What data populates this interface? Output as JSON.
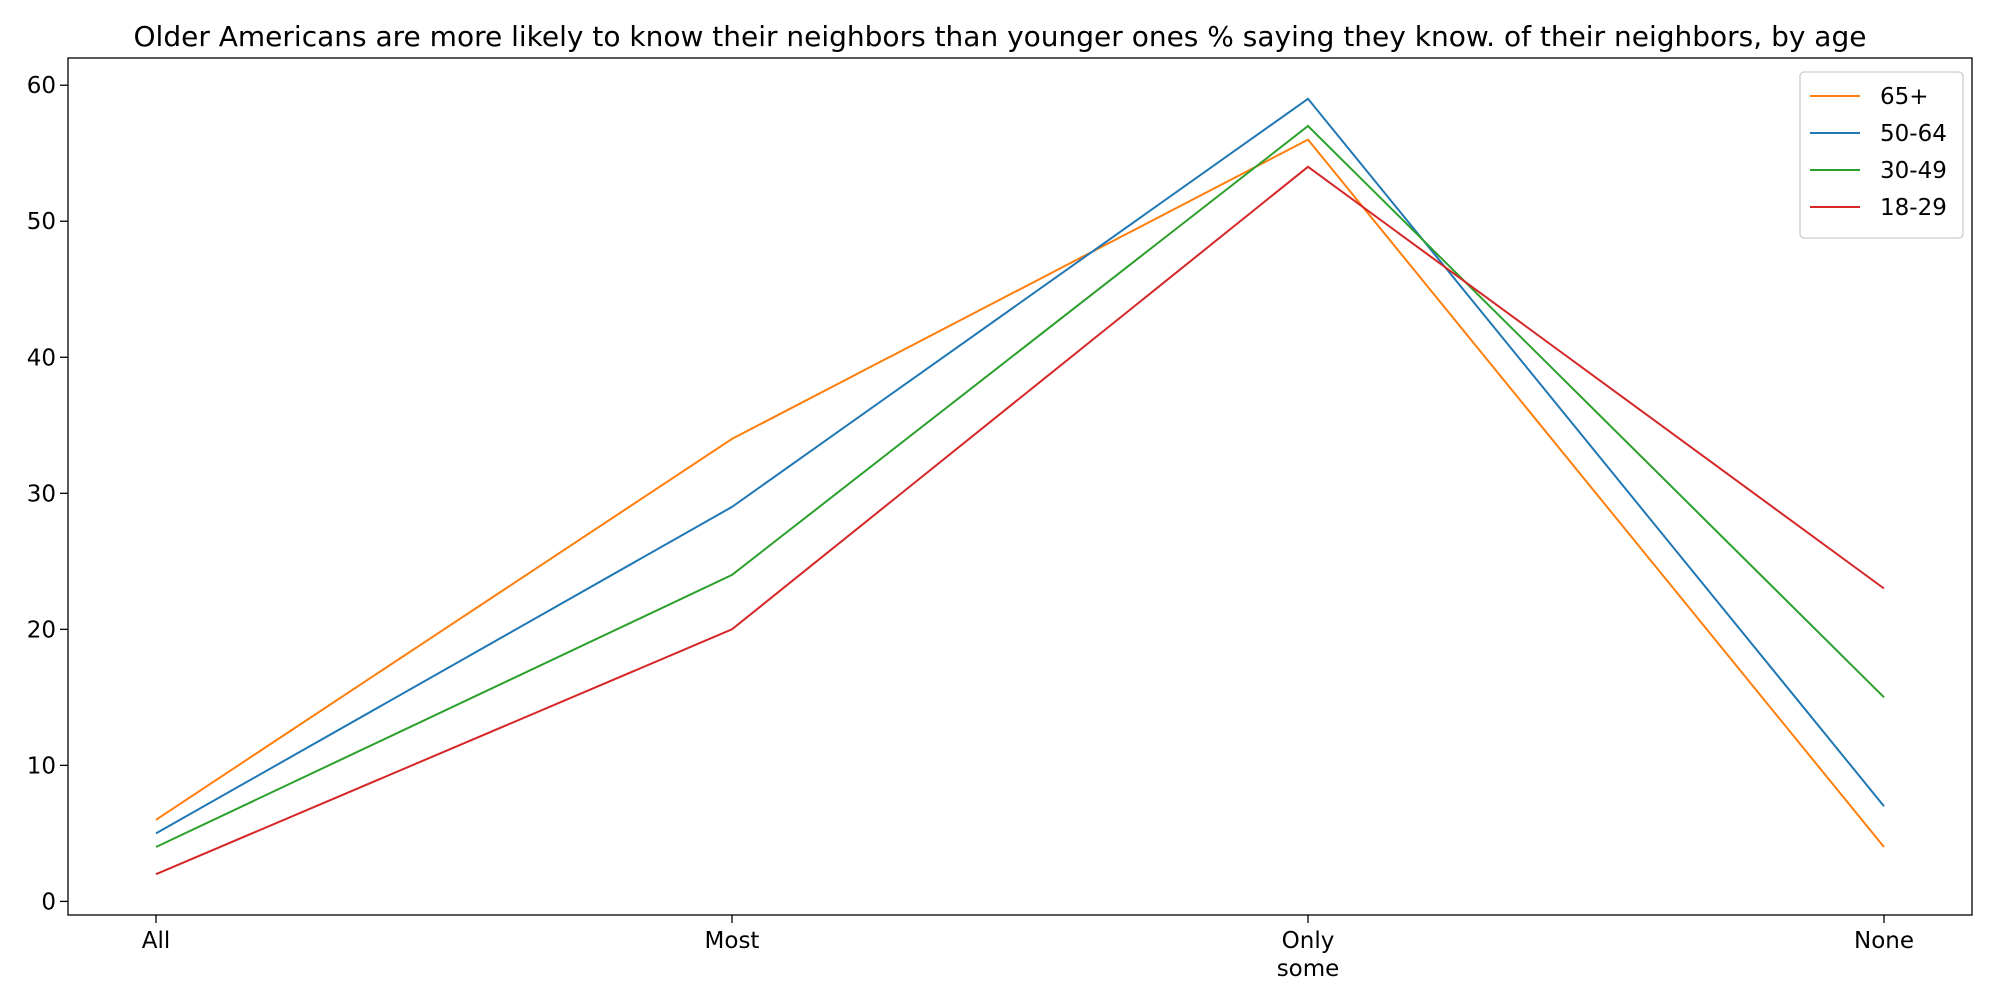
{
  "chart_data": {
    "type": "line",
    "title": "Older Americans are more likely to know their neighbors than younger ones % saying they know. of their neighbors, by age",
    "xlabel": "",
    "ylabel": "",
    "categories": [
      [
        "All"
      ],
      [
        "Most"
      ],
      [
        "Only",
        "some"
      ],
      [
        "None"
      ]
    ],
    "ylim": [
      -1,
      62
    ],
    "yticks": [
      0,
      10,
      20,
      30,
      40,
      50,
      60
    ],
    "grid": false,
    "legend_position": "top-right",
    "series": [
      {
        "name": "65+",
        "color": "#ff7f0e",
        "values": [
          6,
          34,
          56,
          4
        ]
      },
      {
        "name": "50-64",
        "color": "#1f77b4",
        "values": [
          5,
          29,
          59,
          7
        ]
      },
      {
        "name": "30-49",
        "color": "#2ca02c",
        "values": [
          4,
          24,
          57,
          15
        ]
      },
      {
        "name": "18-29",
        "color": "#d62728",
        "values": [
          2,
          20,
          54,
          23
        ]
      }
    ]
  }
}
